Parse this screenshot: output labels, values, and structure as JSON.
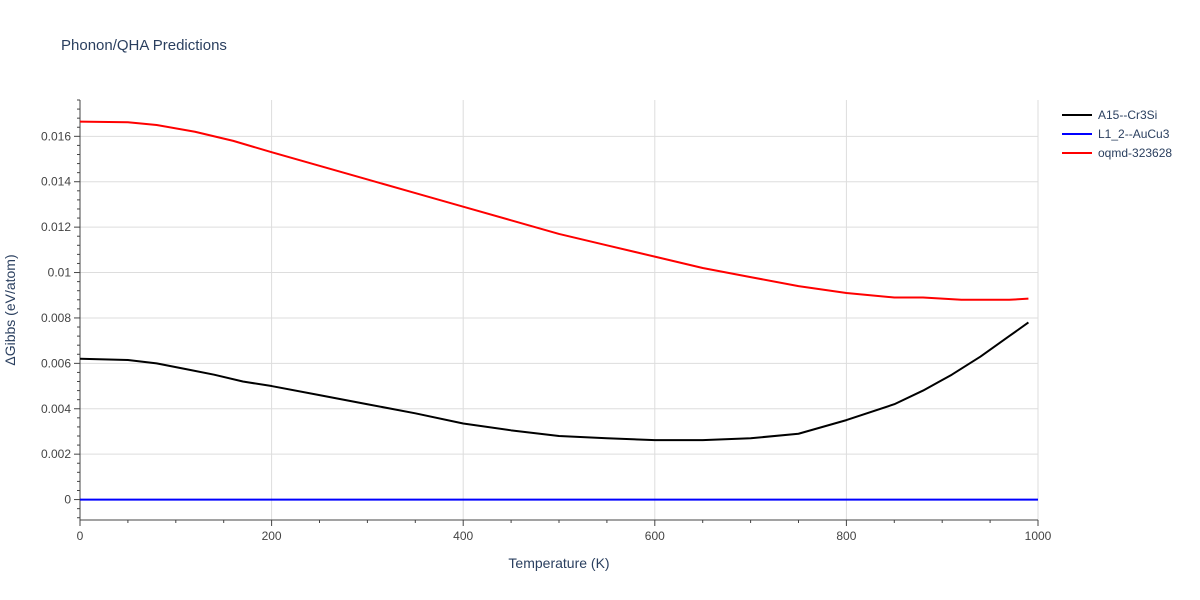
{
  "chart_data": {
    "type": "line",
    "title": "Phonon/QHA Predictions",
    "xlabel": "Temperature (K)",
    "ylabel": "ΔGibbs (eV/atom)",
    "xlim": [
      0,
      1000
    ],
    "ylim": [
      -0.0009,
      0.0176
    ],
    "grid": true,
    "legend_position": "top-right",
    "x_ticks": [
      0,
      200,
      400,
      600,
      800,
      1000
    ],
    "x_tick_labels": [
      "0",
      "200",
      "400",
      "600",
      "800",
      "1000"
    ],
    "y_ticks": [
      0,
      0.002,
      0.004,
      0.006,
      0.008,
      0.01,
      0.012,
      0.014,
      0.016
    ],
    "y_tick_labels": [
      "0",
      "0.002",
      "0.004",
      "0.006",
      "0.008",
      "0.01",
      "0.012",
      "0.014",
      "0.016"
    ],
    "series": [
      {
        "name": "A15--Cr3Si",
        "color": "#000000",
        "x": [
          0,
          50,
          80,
          110,
          140,
          170,
          200,
          250,
          300,
          350,
          400,
          450,
          500,
          550,
          600,
          650,
          700,
          750,
          800,
          850,
          880,
          910,
          940,
          970,
          990
        ],
        "y": [
          0.0062,
          0.00615,
          0.006,
          0.00575,
          0.0055,
          0.0052,
          0.005,
          0.0046,
          0.0042,
          0.0038,
          0.00335,
          0.00305,
          0.0028,
          0.0027,
          0.00262,
          0.00262,
          0.0027,
          0.0029,
          0.0035,
          0.0042,
          0.0048,
          0.0055,
          0.0063,
          0.0072,
          0.0078
        ]
      },
      {
        "name": "L1_2--AuCu3",
        "color": "#0000ff",
        "x": [
          0,
          100,
          200,
          300,
          400,
          500,
          600,
          700,
          800,
          900,
          1000
        ],
        "y": [
          0,
          0,
          0,
          0,
          0,
          0,
          0,
          0,
          0,
          0,
          0
        ]
      },
      {
        "name": "oqmd-323628",
        "color": "#ff0000",
        "x": [
          0,
          50,
          80,
          120,
          160,
          200,
          250,
          300,
          350,
          400,
          450,
          500,
          550,
          600,
          650,
          700,
          750,
          800,
          850,
          880,
          920,
          950,
          970,
          990
        ],
        "y": [
          0.01665,
          0.01662,
          0.0165,
          0.0162,
          0.0158,
          0.0153,
          0.0147,
          0.0141,
          0.0135,
          0.0129,
          0.0123,
          0.0117,
          0.0112,
          0.0107,
          0.0102,
          0.0098,
          0.0094,
          0.0091,
          0.0089,
          0.0089,
          0.0088,
          0.0088,
          0.0088,
          0.00885
        ]
      }
    ]
  }
}
